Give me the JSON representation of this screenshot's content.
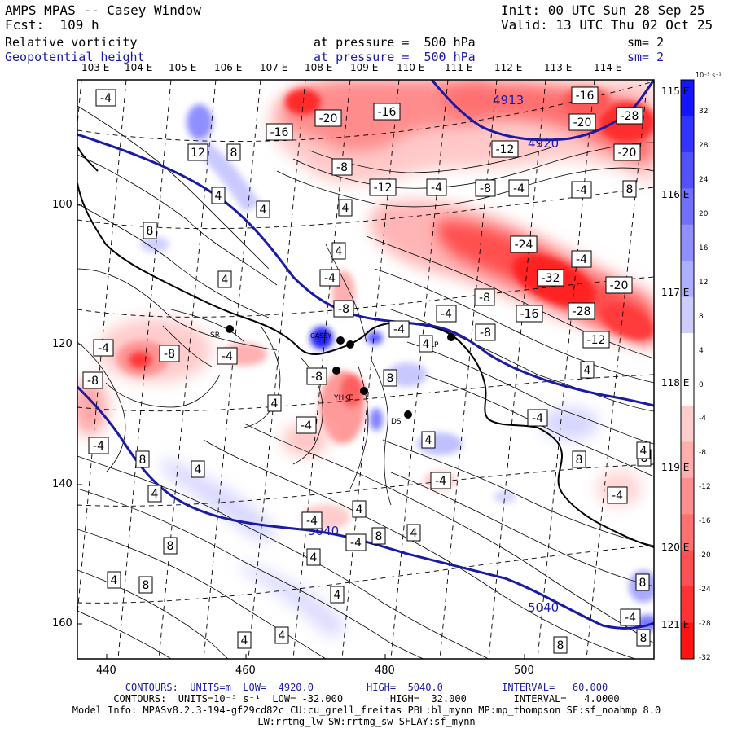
{
  "header": {
    "title": "AMPS MPAS -- Casey Window",
    "init": "Init: 00 UTC Sun 28 Sep 25",
    "forecast": "Fcst:  109 h",
    "valid": "Valid: 13 UTC Thu 02 Oct 25",
    "field1_name": "Relative vorticity",
    "field1_level": "at pressure =  500 hPa",
    "field1_smooth": "sm= 2",
    "field2_name": "Geopotential height",
    "field2_level": "at pressure =  500 hPa",
    "field2_smooth": "sm= 2"
  },
  "map": {
    "lon_labels": [
      "103 E",
      "104 E",
      "105 E",
      "106 E",
      "107 E",
      "108 E",
      "109 E",
      "110 E",
      "111 E",
      "112 E",
      "113 E",
      "114 E"
    ],
    "lat_labels": [
      "115 E",
      "116 E",
      "117 E",
      "118 E",
      "119 E",
      "120 E",
      "121 E"
    ],
    "y_ticks": [
      "100",
      "120",
      "140",
      "160"
    ],
    "x_ticks": [
      "440",
      "460",
      "480",
      "500"
    ],
    "stations": [
      "SR",
      "CASEY",
      "LP",
      "YHKE",
      "DS"
    ],
    "height_labels": [
      "4913",
      "4920",
      "5040",
      "5040"
    ],
    "vort_labels": [
      {
        "v": "-4"
      },
      {
        "v": "12"
      },
      {
        "v": "8"
      },
      {
        "v": "4"
      },
      {
        "v": "4"
      },
      {
        "v": "8"
      },
      {
        "v": "-16"
      },
      {
        "v": "-20"
      },
      {
        "v": "-16"
      },
      {
        "v": "-16"
      },
      {
        "v": "-20"
      },
      {
        "v": "-28"
      },
      {
        "v": "-12"
      },
      {
        "v": "-20"
      },
      {
        "v": "-8"
      },
      {
        "v": "-12"
      },
      {
        "v": "-4"
      },
      {
        "v": "-8"
      },
      {
        "v": "-4"
      },
      {
        "v": "-4"
      },
      {
        "v": "8"
      },
      {
        "v": "4"
      },
      {
        "v": "4"
      },
      {
        "v": "-4"
      },
      {
        "v": "-8"
      },
      {
        "v": "-24"
      },
      {
        "v": "-4"
      },
      {
        "v": "-32"
      },
      {
        "v": "-20"
      },
      {
        "v": "4"
      },
      {
        "v": "-4"
      },
      {
        "v": "-8"
      },
      {
        "v": "-16"
      },
      {
        "v": "-28"
      },
      {
        "v": "-4"
      },
      {
        "v": "-8"
      },
      {
        "v": "4"
      },
      {
        "v": "-12"
      },
      {
        "v": "-4"
      },
      {
        "v": "-8"
      },
      {
        "v": "-4"
      },
      {
        "v": "-8"
      },
      {
        "v": "4"
      },
      {
        "v": "8"
      },
      {
        "v": "-8"
      },
      {
        "v": "-4"
      },
      {
        "v": "4"
      },
      {
        "v": "-4"
      },
      {
        "v": "-4"
      },
      {
        "v": "4"
      },
      {
        "v": "8"
      },
      {
        "v": "4"
      },
      {
        "v": "-4"
      },
      {
        "v": "4"
      },
      {
        "v": "4"
      },
      {
        "v": "-4"
      },
      {
        "v": "8"
      },
      {
        "v": "8"
      },
      {
        "v": "-4"
      },
      {
        "v": "8"
      },
      {
        "v": "-4"
      },
      {
        "v": "8"
      },
      {
        "v": "4"
      },
      {
        "v": "4"
      },
      {
        "v": "4"
      },
      {
        "v": "8"
      },
      {
        "v": "4"
      },
      {
        "v": "8"
      },
      {
        "v": "-4"
      },
      {
        "v": "8"
      },
      {
        "v": "4"
      },
      {
        "v": "4"
      },
      {
        "v": "8"
      },
      {
        "v": "4"
      }
    ]
  },
  "colorbar": {
    "unit": "10⁻⁵ s⁻¹",
    "ticks": [
      "32",
      "28",
      "24",
      "20",
      "16",
      "12",
      "8",
      "4",
      "0",
      "-4",
      "-8",
      "-12",
      "-16",
      "-20",
      "-24",
      "-28",
      "-32"
    ],
    "positive_color": "#1a1aff",
    "negative_color": "#ff1a1a"
  },
  "footer": {
    "line1": "CONTOURS:  UNITS=m  LOW=  4920.0         HIGH=  5040.0          INTERVAL=   60.000",
    "line2": "CONTOURS:  UNITS=10⁻⁵ s⁻¹  LOW= -32.000        HIGH=  32.000        INTERVAL=   4.0000",
    "line3": "Model Info: MPASv8.2.3-194-gf29cd82c CU:cu_grell_freitas PBL:bl_mynn MP:mp_thompson SF:sf_noahmp 8.0",
    "line4": "LW:rrtmg_lw SW:rrtmg_sw SFLAY:sf_mynn"
  }
}
